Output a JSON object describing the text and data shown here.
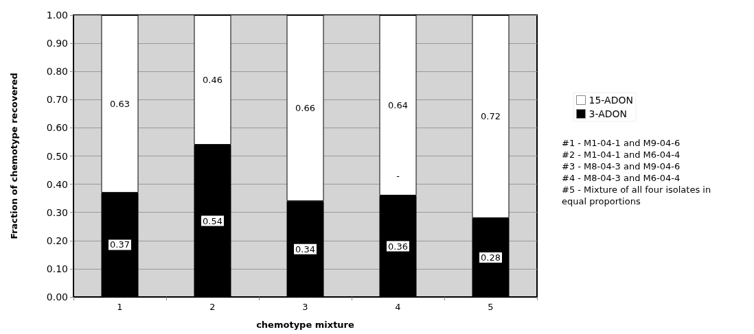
{
  "chart_data": {
    "type": "bar",
    "stacked": true,
    "xlabel": "chemotype mixture",
    "ylabel": "Fraction of chemotype recovered",
    "categories": [
      "1",
      "2",
      "3",
      "4",
      "5"
    ],
    "series": [
      {
        "name": "3-ADON",
        "color": "#000000",
        "values": [
          0.37,
          0.54,
          0.34,
          0.36,
          0.28
        ]
      },
      {
        "name": "15-ADON",
        "color": "#ffffff",
        "values": [
          0.63,
          0.46,
          0.66,
          0.64,
          0.72
        ]
      }
    ],
    "data_labels": true,
    "ylim": [
      0,
      1
    ],
    "yticks": [
      {
        "value": 0,
        "label": "0.00"
      },
      {
        "value": 0.1,
        "label": "0.10"
      },
      {
        "value": 0.2,
        "label": "0.20"
      },
      {
        "value": 0.3,
        "label": "0.30"
      },
      {
        "value": 0.4,
        "label": "0.40"
      },
      {
        "value": 0.5,
        "label": "0.50"
      },
      {
        "value": 0.6,
        "label": "0.60"
      },
      {
        "value": 0.7,
        "label": "0.70"
      },
      {
        "value": 0.8,
        "label": "0.80"
      },
      {
        "value": 0.9,
        "label": "0.90"
      },
      {
        "value": 1,
        "label": "1.00"
      }
    ],
    "grid": "y",
    "legend": "right",
    "annotations": [
      "-",
      "#1 - M1-04-1 and M9-04-6",
      "#2 - M1-04-1 and M6-04-4",
      "#3 - M8-04-3 and M9-04-6",
      "#4 - M8-04-3 and M6-04-4",
      "#5 - Mixture of all four isolates in equal proportions"
    ]
  }
}
